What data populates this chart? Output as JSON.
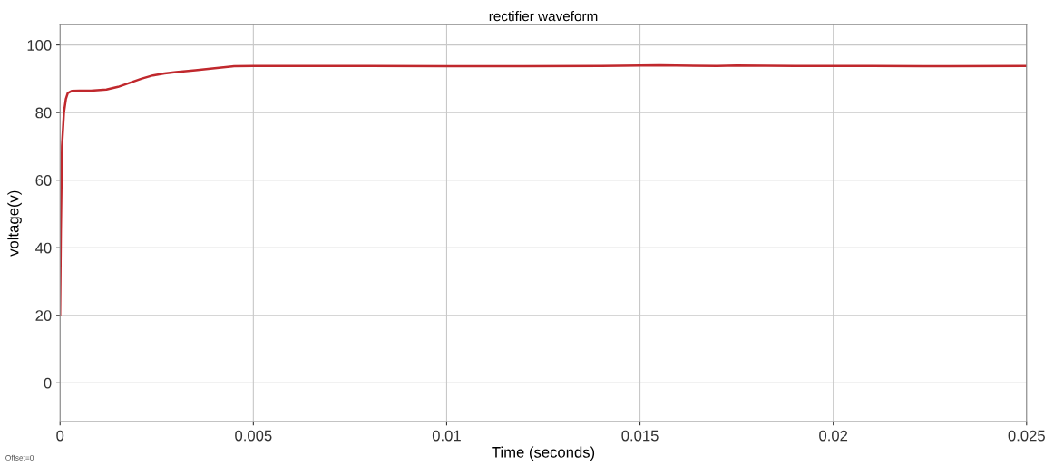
{
  "chart_data": {
    "type": "line",
    "title": "rectifier waveform",
    "xlabel": "Time (seconds)",
    "ylabel": "voltage(v)",
    "annotations": [
      "Offset=0"
    ],
    "x": [
      0,
      2e-05,
      5e-05,
      0.0001,
      0.00015,
      0.0002,
      0.0003,
      0.0005,
      0.0008,
      0.0012,
      0.0015,
      0.0018,
      0.0021,
      0.0024,
      0.0027,
      0.003,
      0.0035,
      0.004,
      0.0045,
      0.005,
      0.006,
      0.008,
      0.01,
      0.012,
      0.014,
      0.0155,
      0.017,
      0.0175,
      0.019,
      0.021,
      0.023,
      0.025
    ],
    "series": [
      {
        "color": "#c0282d",
        "values": [
          20,
          45,
          70,
          80,
          84,
          85.8,
          86.4,
          86.5,
          86.5,
          86.8,
          87.6,
          88.8,
          90.0,
          91.0,
          91.6,
          92.0,
          92.5,
          93.1,
          93.7,
          93.8,
          93.8,
          93.8,
          93.7,
          93.7,
          93.8,
          94.0,
          93.8,
          93.9,
          93.8,
          93.8,
          93.7,
          93.8
        ]
      }
    ],
    "xlim": [
      0,
      0.025
    ],
    "ylim": [
      -11.5,
      106
    ],
    "xticks": [
      0,
      0.005,
      0.01,
      0.015,
      0.02,
      0.025
    ],
    "yticks": [
      0,
      20,
      40,
      60,
      80,
      100
    ],
    "grid": true,
    "marker": "none",
    "line_style": "solid"
  }
}
